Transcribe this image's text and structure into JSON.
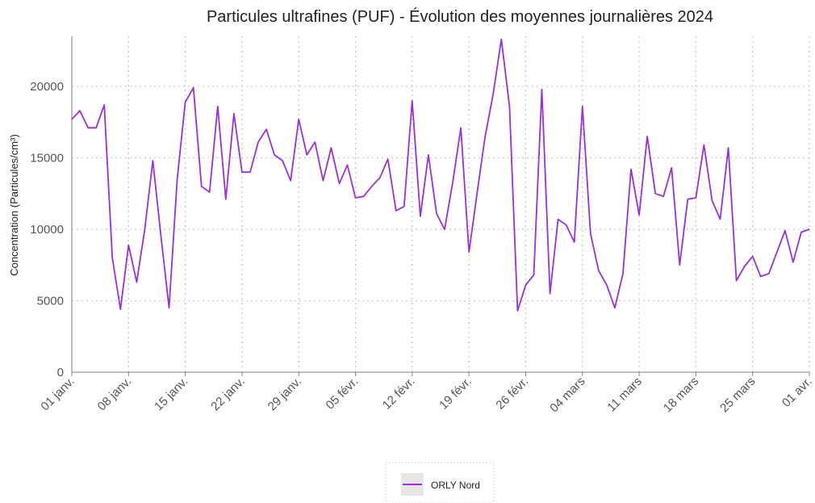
{
  "chart_data": {
    "type": "line",
    "title": "Particules ultrafines (PUF)  - Évolution des moyennes journalières 2024",
    "ylabel": "Concentration (Particules/cm³)",
    "xlabel": "",
    "ylim": [
      0,
      23500
    ],
    "yticks": [
      0,
      5000,
      10000,
      15000,
      20000
    ],
    "grid": true,
    "legend_position": "bottom",
    "x_tick_labels": [
      "01 janv.",
      "08 janv.",
      "15 janv.",
      "22 janv.",
      "29 janv.",
      "05 févr.",
      "12 févr.",
      "19 févr.",
      "26 févr.",
      "04 mars",
      "11 mars",
      "18 mars",
      "25 mars",
      "01 avr."
    ],
    "x_start": "01 janv.",
    "x_end": "01 avr.",
    "series": [
      {
        "name": "ORLY Nord",
        "color": "#9b30d9",
        "values": [
          17700,
          18300,
          17100,
          17100,
          18700,
          8000,
          4400,
          8900,
          6300,
          10000,
          14800,
          9500,
          4500,
          13500,
          18900,
          19900,
          13000,
          12600,
          18600,
          12100,
          18100,
          14000,
          14000,
          16100,
          17000,
          15200,
          14800,
          13400,
          17700,
          15200,
          16100,
          13400,
          15700,
          13200,
          14500,
          12200,
          12300,
          13000,
          13600,
          14900,
          11300,
          11600,
          19000,
          10900,
          15200,
          11100,
          10000,
          13300,
          17100,
          8400,
          12500,
          16500,
          19500,
          23300,
          18600,
          4300,
          6100,
          6800,
          19800,
          5500,
          10700,
          10300,
          9100,
          18600,
          9700,
          7100,
          6100,
          4500,
          6900,
          14200,
          11000,
          16500,
          12500,
          12300,
          14300,
          7500,
          12100,
          12200,
          15900,
          12000,
          10700,
          15700,
          6400,
          7400,
          8100,
          6700,
          6900,
          8400,
          9900,
          7700,
          9800,
          10000
        ]
      }
    ]
  }
}
